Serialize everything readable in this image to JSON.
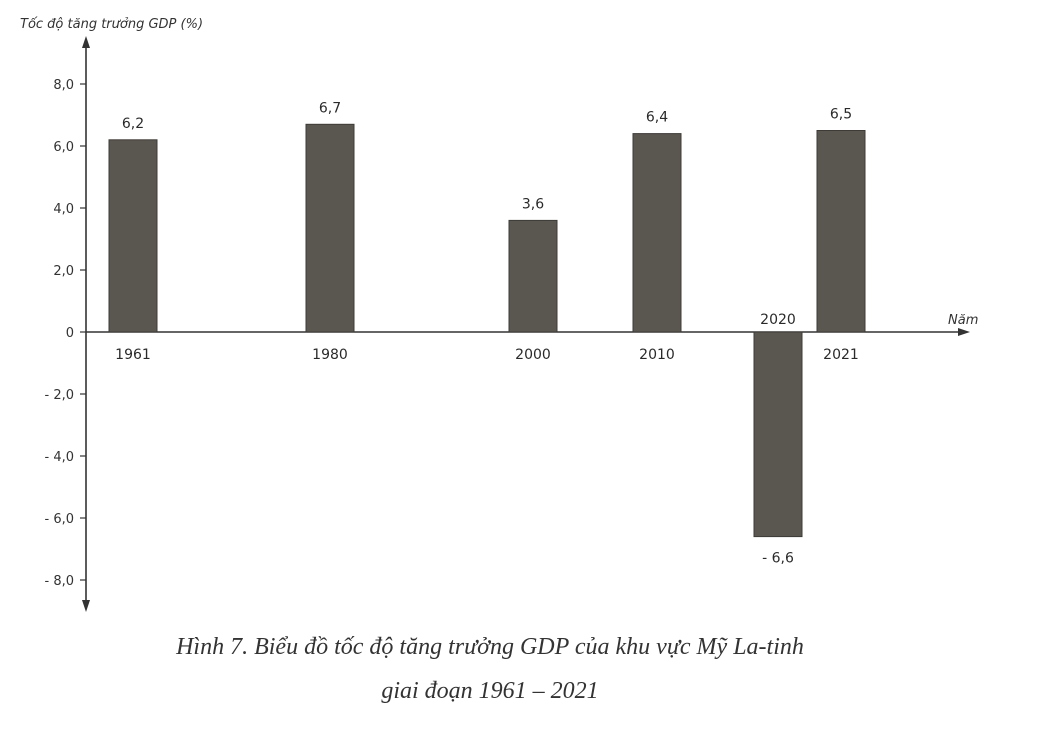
{
  "chart_data": {
    "type": "bar",
    "ylabel": "Tốc độ tăng trưởng GDP (%)",
    "xlabel": "Năm",
    "categories": [
      "1961",
      "1980",
      "2000",
      "2010",
      "2020",
      "2021"
    ],
    "values": [
      6.2,
      6.7,
      3.6,
      6.4,
      -6.6,
      6.5
    ],
    "value_labels": [
      "6,2",
      "6,7",
      "3,6",
      "6,4",
      "- 6,6",
      "6,5"
    ],
    "ylim": [
      -8.0,
      8.0
    ],
    "yticks": [
      8,
      6,
      4,
      2,
      0,
      -2,
      -4,
      -6,
      -8
    ],
    "ytick_labels": [
      "8,0",
      "6,0",
      "4,0",
      "2,0",
      "0",
      "- 2,0",
      "- 4,0",
      "- 6,0",
      "- 8,0"
    ],
    "bar_color": "#5a5650",
    "grid": false
  },
  "caption": {
    "line1": "Hình 7. Biểu đồ tốc độ tăng trưởng GDP của khu vực Mỹ La-tinh",
    "line2": "giai đoạn 1961 – 2021"
  }
}
